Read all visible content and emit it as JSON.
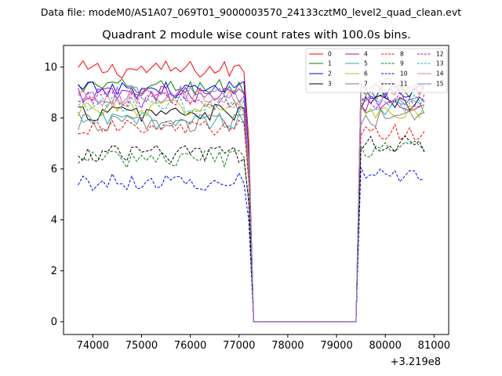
{
  "figure": {
    "suptitle": "Data file: modeM0/AS1A07_069T01_9000003570_24133cztM0_level2_quad_clean.evt"
  },
  "chart_data": {
    "type": "line",
    "title": "Quadrant 2 module wise count rates with 100.0s bins.",
    "xlabel": "",
    "ylabel": "",
    "x_offset_label": "+3.219e8",
    "x_offset": 321900000,
    "xlim": [
      73400,
      81300
    ],
    "ylim": [
      -0.5,
      10.85
    ],
    "xticks": [
      74000,
      75000,
      76000,
      77000,
      78000,
      79000,
      80000,
      81000
    ],
    "xtick_labels": [
      "74000",
      "75000",
      "76000",
      "77000",
      "78000",
      "79000",
      "80000",
      "81000"
    ],
    "yticks": [
      0,
      2,
      4,
      6,
      8,
      10
    ],
    "ytick_labels": [
      "0",
      "2",
      "4",
      "6",
      "8",
      "10"
    ],
    "grid": false,
    "legend_position": "upper-right",
    "legend_columns": 4,
    "segments": [
      {
        "start": 73700,
        "end": 77100,
        "kind": "data"
      },
      {
        "start": 77200,
        "end": 77300,
        "kind": "falling"
      },
      {
        "start": 77300,
        "end": 79400,
        "kind": "gap_zero"
      },
      {
        "start": 79500,
        "end": 80800,
        "kind": "data"
      }
    ],
    "series": [
      {
        "name": "0",
        "color": "#ff0000",
        "dash": "solid",
        "level": 9.9,
        "level_after": 9.4
      },
      {
        "name": "1",
        "color": "#008000",
        "dash": "solid",
        "level": 9.2,
        "level_after": 9.0
      },
      {
        "name": "2",
        "color": "#0000ff",
        "dash": "solid",
        "level": 9.1,
        "level_after": 9.1
      },
      {
        "name": "3",
        "color": "#000000",
        "dash": "solid",
        "level": 8.2,
        "level_after": 8.6
      },
      {
        "name": "4",
        "color": "#c000c0",
        "dash": "solid",
        "level": 8.9,
        "level_after": 8.6
      },
      {
        "name": "5",
        "color": "#20b2aa",
        "dash": "solid",
        "level": 7.9,
        "level_after": 8.4
      },
      {
        "name": "6",
        "color": "#bfbf00",
        "dash": "solid",
        "level": 8.4,
        "level_after": 8.2
      },
      {
        "name": "7",
        "color": "#808080",
        "dash": "solid",
        "level": 7.8,
        "level_after": 8.0
      },
      {
        "name": "8",
        "color": "#ff0000",
        "dash": "dashed",
        "level": 7.6,
        "level_after": 7.4
      },
      {
        "name": "9",
        "color": "#008000",
        "dash": "dashed",
        "level": 6.4,
        "level_after": 6.8
      },
      {
        "name": "10",
        "color": "#0000ff",
        "dash": "dashed",
        "level": 5.5,
        "level_after": 5.8
      },
      {
        "name": "11",
        "color": "#000000",
        "dash": "dashed",
        "level": 6.6,
        "level_after": 7.0
      },
      {
        "name": "12",
        "color": "#c000c0",
        "dash": "dashed",
        "level": 8.7,
        "level_after": 8.7
      },
      {
        "name": "13",
        "color": "#20b2aa",
        "dash": "dashed",
        "level": 8.5,
        "level_after": 8.6
      },
      {
        "name": "14",
        "color": "#f08080",
        "dash": "solid",
        "level": 8.8,
        "level_after": 9.2
      },
      {
        "name": "15",
        "color": "#9370db",
        "dash": "solid",
        "level": 8.9,
        "level_after": 8.8
      }
    ],
    "noise_amplitude": 0.35
  }
}
